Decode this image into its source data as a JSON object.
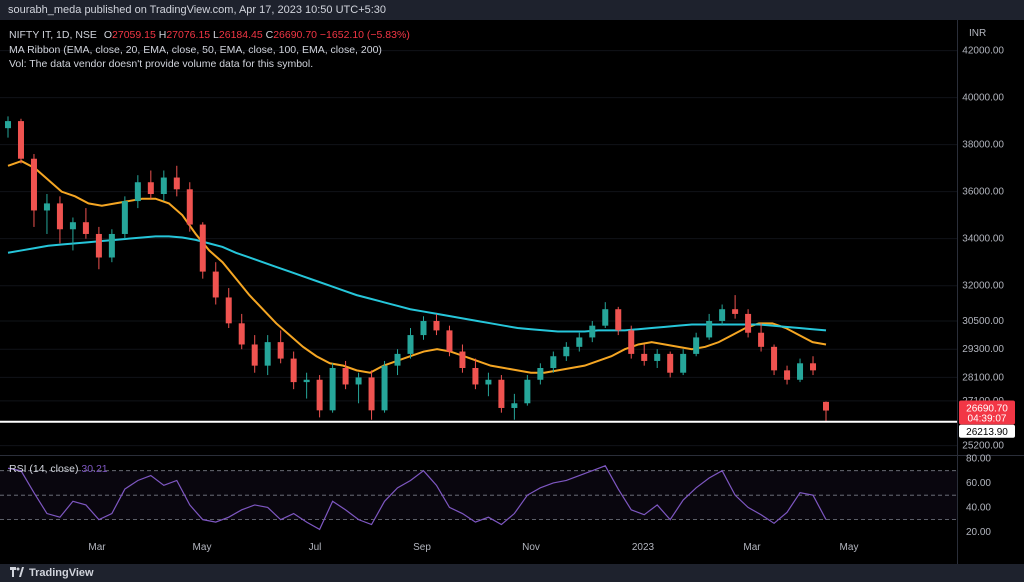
{
  "header": {
    "publisher_text": "sourabh_meda published on TradingView.com, Apr 17, 2023 10:50 UTC+5:30"
  },
  "legend": {
    "symbol": "NIFTY IT, 1D, NSE",
    "open_label": "O",
    "open": "27059.15",
    "high_label": "H",
    "high": "27076.15",
    "low_label": "L",
    "low": "26184.45",
    "close_label": "C",
    "close": "26690.70",
    "change": "−1652.10 (−5.83%)",
    "ma_ribbon": "MA Ribbon (EMA, close, 20, EMA, close, 50, EMA, close, 100, EMA, close, 200)",
    "volume_note": "Vol: The data vendor doesn't provide volume data for this symbol."
  },
  "price_axis": {
    "currency": "INR",
    "ticks": [
      "42000.00",
      "40000.00",
      "38000.00",
      "36000.00",
      "34000.00",
      "32000.00",
      "30500.00",
      "29300.00",
      "28100.00",
      "27100.00",
      "25200.00"
    ],
    "last_price": "26690.70",
    "countdown": "04:39:07",
    "support_level": "26213.90"
  },
  "time_axis": {
    "labels": [
      "Mar",
      "May",
      "Jul",
      "Sep",
      "Nov",
      "2023",
      "Mar",
      "May"
    ]
  },
  "rsi": {
    "label": "RSI (14, close)",
    "value": "30.21",
    "ticks": [
      "80.00",
      "60.00",
      "40.00",
      "20.00"
    ]
  },
  "footer": {
    "brand": "TradingView"
  },
  "colors": {
    "up": "#26a69a",
    "down": "#ef5350",
    "ema_fast": "#f5a623",
    "ema_slow": "#26c6da",
    "rsi": "#7e57c2",
    "last_price_bg": "#f23645",
    "support_line": "#ffffff"
  },
  "chart_data": {
    "type": "candlestick",
    "title": "NIFTY IT, 1D, NSE",
    "ylim": [
      24800,
      43300
    ],
    "last_close": 26690.7,
    "support": 26213.9,
    "series": [
      {
        "name": "EMA 50",
        "color": "#f5a623",
        "values": [
          37100,
          37300,
          37000,
          36500,
          36000,
          35800,
          35500,
          35400,
          35500,
          35600,
          35700,
          35700,
          35500,
          35000,
          34200,
          33500,
          33000,
          32300,
          31600,
          31000,
          30400,
          29900,
          29400,
          29000,
          28700,
          28600,
          28400,
          28300,
          28600,
          28800,
          29000,
          29200,
          29300,
          29200,
          29000,
          28800,
          28600,
          28500,
          28400,
          28300,
          28300,
          28400,
          28500,
          28600,
          28800,
          29000,
          29300,
          29500,
          29600,
          29500,
          29400,
          29300,
          29400,
          29600,
          29900,
          30200,
          30400,
          30400,
          30200,
          29900,
          29600,
          29500
        ]
      },
      {
        "name": "EMA 200",
        "color": "#26c6da",
        "values": [
          33400,
          33500,
          33600,
          33700,
          33750,
          33800,
          33850,
          33900,
          33950,
          34000,
          34050,
          34100,
          34100,
          34050,
          33950,
          33800,
          33650,
          33400,
          33200,
          33000,
          32800,
          32600,
          32400,
          32200,
          32000,
          31800,
          31600,
          31450,
          31300,
          31150,
          31000,
          30900,
          30800,
          30700,
          30600,
          30500,
          30400,
          30300,
          30200,
          30150,
          30100,
          30050,
          30050,
          30050,
          30100,
          30100,
          30100,
          30150,
          30200,
          30250,
          30300,
          30350,
          30350,
          30350,
          30350,
          30350,
          30350,
          30300,
          30250,
          30200,
          30150,
          30100
        ]
      }
    ],
    "candles": [
      {
        "o": 38700,
        "h": 39200,
        "l": 38300,
        "c": 39000
      },
      {
        "o": 39000,
        "h": 39100,
        "l": 37200,
        "c": 37400
      },
      {
        "o": 37400,
        "h": 37600,
        "l": 34500,
        "c": 35200
      },
      {
        "o": 35200,
        "h": 35900,
        "l": 34200,
        "c": 35500
      },
      {
        "o": 35500,
        "h": 35800,
        "l": 33800,
        "c": 34400
      },
      {
        "o": 34400,
        "h": 34900,
        "l": 33500,
        "c": 34700
      },
      {
        "o": 34700,
        "h": 35300,
        "l": 34000,
        "c": 34200
      },
      {
        "o": 34200,
        "h": 34500,
        "l": 32700,
        "c": 33200
      },
      {
        "o": 33200,
        "h": 34400,
        "l": 33000,
        "c": 34200
      },
      {
        "o": 34200,
        "h": 35800,
        "l": 34000,
        "c": 35600
      },
      {
        "o": 35600,
        "h": 36700,
        "l": 35300,
        "c": 36400
      },
      {
        "o": 36400,
        "h": 36900,
        "l": 35700,
        "c": 35900
      },
      {
        "o": 35900,
        "h": 36900,
        "l": 35600,
        "c": 36600
      },
      {
        "o": 36600,
        "h": 37100,
        "l": 35800,
        "c": 36100
      },
      {
        "o": 36100,
        "h": 36400,
        "l": 34300,
        "c": 34600
      },
      {
        "o": 34600,
        "h": 34700,
        "l": 32300,
        "c": 32600
      },
      {
        "o": 32600,
        "h": 33000,
        "l": 31200,
        "c": 31500
      },
      {
        "o": 31500,
        "h": 31900,
        "l": 30200,
        "c": 30400
      },
      {
        "o": 30400,
        "h": 30800,
        "l": 29300,
        "c": 29500
      },
      {
        "o": 29500,
        "h": 29900,
        "l": 28300,
        "c": 28600
      },
      {
        "o": 28600,
        "h": 29900,
        "l": 28200,
        "c": 29600
      },
      {
        "o": 29600,
        "h": 30100,
        "l": 28700,
        "c": 28900
      },
      {
        "o": 28900,
        "h": 29200,
        "l": 27600,
        "c": 27900
      },
      {
        "o": 27900,
        "h": 28300,
        "l": 27200,
        "c": 28000
      },
      {
        "o": 28000,
        "h": 28200,
        "l": 26400,
        "c": 26700
      },
      {
        "o": 26700,
        "h": 28700,
        "l": 26600,
        "c": 28500
      },
      {
        "o": 28500,
        "h": 28800,
        "l": 27600,
        "c": 27800
      },
      {
        "o": 27800,
        "h": 28300,
        "l": 27000,
        "c": 28100
      },
      {
        "o": 28100,
        "h": 28400,
        "l": 26300,
        "c": 26700
      },
      {
        "o": 26700,
        "h": 28800,
        "l": 26600,
        "c": 28600
      },
      {
        "o": 28600,
        "h": 29300,
        "l": 28200,
        "c": 29100
      },
      {
        "o": 29100,
        "h": 30200,
        "l": 28900,
        "c": 29900
      },
      {
        "o": 29900,
        "h": 30700,
        "l": 29700,
        "c": 30500
      },
      {
        "o": 30500,
        "h": 30800,
        "l": 29900,
        "c": 30100
      },
      {
        "o": 30100,
        "h": 30300,
        "l": 29000,
        "c": 29200
      },
      {
        "o": 29200,
        "h": 29500,
        "l": 28300,
        "c": 28500
      },
      {
        "o": 28500,
        "h": 28900,
        "l": 27600,
        "c": 27800
      },
      {
        "o": 27800,
        "h": 28300,
        "l": 27300,
        "c": 28000
      },
      {
        "o": 28000,
        "h": 28200,
        "l": 26600,
        "c": 26800
      },
      {
        "o": 26800,
        "h": 27400,
        "l": 26300,
        "c": 27000
      },
      {
        "o": 27000,
        "h": 28200,
        "l": 26900,
        "c": 28000
      },
      {
        "o": 28000,
        "h": 28700,
        "l": 27800,
        "c": 28500
      },
      {
        "o": 28500,
        "h": 29200,
        "l": 28300,
        "c": 29000
      },
      {
        "o": 29000,
        "h": 29600,
        "l": 28800,
        "c": 29400
      },
      {
        "o": 29400,
        "h": 30000,
        "l": 29200,
        "c": 29800
      },
      {
        "o": 29800,
        "h": 30500,
        "l": 29600,
        "c": 30300
      },
      {
        "o": 30300,
        "h": 31300,
        "l": 30200,
        "c": 31000
      },
      {
        "o": 31000,
        "h": 31100,
        "l": 29900,
        "c": 30100
      },
      {
        "o": 30100,
        "h": 30300,
        "l": 28900,
        "c": 29100
      },
      {
        "o": 29100,
        "h": 29500,
        "l": 28600,
        "c": 28800
      },
      {
        "o": 28800,
        "h": 29300,
        "l": 28500,
        "c": 29100
      },
      {
        "o": 29100,
        "h": 29200,
        "l": 28100,
        "c": 28300
      },
      {
        "o": 28300,
        "h": 29300,
        "l": 28200,
        "c": 29100
      },
      {
        "o": 29100,
        "h": 30000,
        "l": 29000,
        "c": 29800
      },
      {
        "o": 29800,
        "h": 30800,
        "l": 29700,
        "c": 30500
      },
      {
        "o": 30500,
        "h": 31200,
        "l": 30300,
        "c": 31000
      },
      {
        "o": 31000,
        "h": 31600,
        "l": 30600,
        "c": 30800
      },
      {
        "o": 30800,
        "h": 31000,
        "l": 29800,
        "c": 30000
      },
      {
        "o": 30000,
        "h": 30400,
        "l": 29200,
        "c": 29400
      },
      {
        "o": 29400,
        "h": 29500,
        "l": 28200,
        "c": 28400
      },
      {
        "o": 28400,
        "h": 28600,
        "l": 27800,
        "c": 28000
      },
      {
        "o": 28000,
        "h": 28900,
        "l": 27900,
        "c": 28700
      },
      {
        "o": 28700,
        "h": 29000,
        "l": 28200,
        "c": 28400
      },
      {
        "o": 27059.15,
        "h": 27076.15,
        "l": 26184.45,
        "c": 26690.7
      }
    ],
    "rsi_values": [
      72,
      70,
      52,
      35,
      32,
      45,
      42,
      30,
      35,
      55,
      62,
      66,
      58,
      62,
      42,
      30,
      28,
      32,
      38,
      42,
      40,
      30,
      35,
      28,
      22,
      45,
      38,
      30,
      26,
      45,
      56,
      62,
      70,
      58,
      40,
      35,
      28,
      32,
      26,
      35,
      50,
      56,
      60,
      62,
      66,
      70,
      74,
      55,
      38,
      34,
      42,
      30,
      46,
      56,
      64,
      70,
      50,
      40,
      34,
      27,
      36,
      52,
      50,
      30
    ]
  }
}
